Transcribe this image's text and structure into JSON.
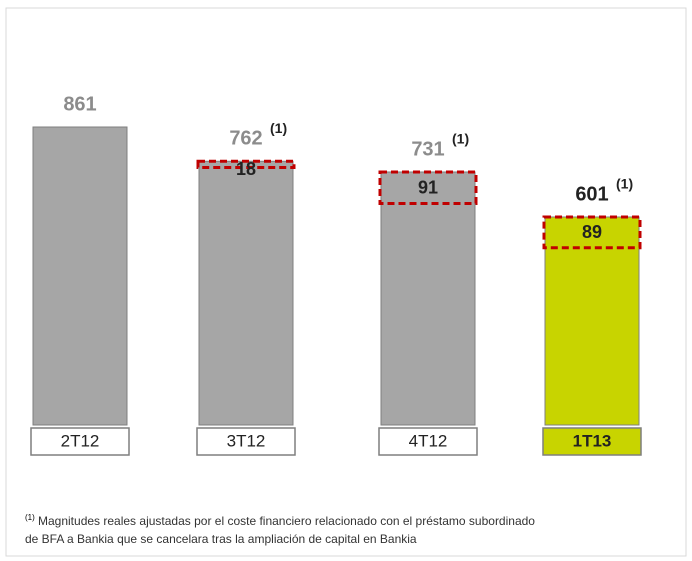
{
  "chart_data": {
    "type": "bar",
    "categories": [
      "2T12",
      "3T12",
      "4T12",
      "1T13"
    ],
    "values": [
      861,
      762,
      731,
      601
    ],
    "colors": [
      "#a6a6a6",
      "#a6a6a6",
      "#a6a6a6",
      "#c8d400"
    ],
    "highlight_values": [
      null,
      18,
      91,
      89
    ],
    "highlight_color": "#c00000",
    "annotations": [
      null,
      "(1)",
      "(1)",
      "(1)"
    ],
    "footnote": {
      "marker": "(1)",
      "lines": [
        "Magnitudes reales ajustadas por el coste financiero relacionado con el préstamo subordinado",
        "de BFA a Bankia que se cancelara tras la ampliación de capital en Bankia"
      ]
    }
  }
}
